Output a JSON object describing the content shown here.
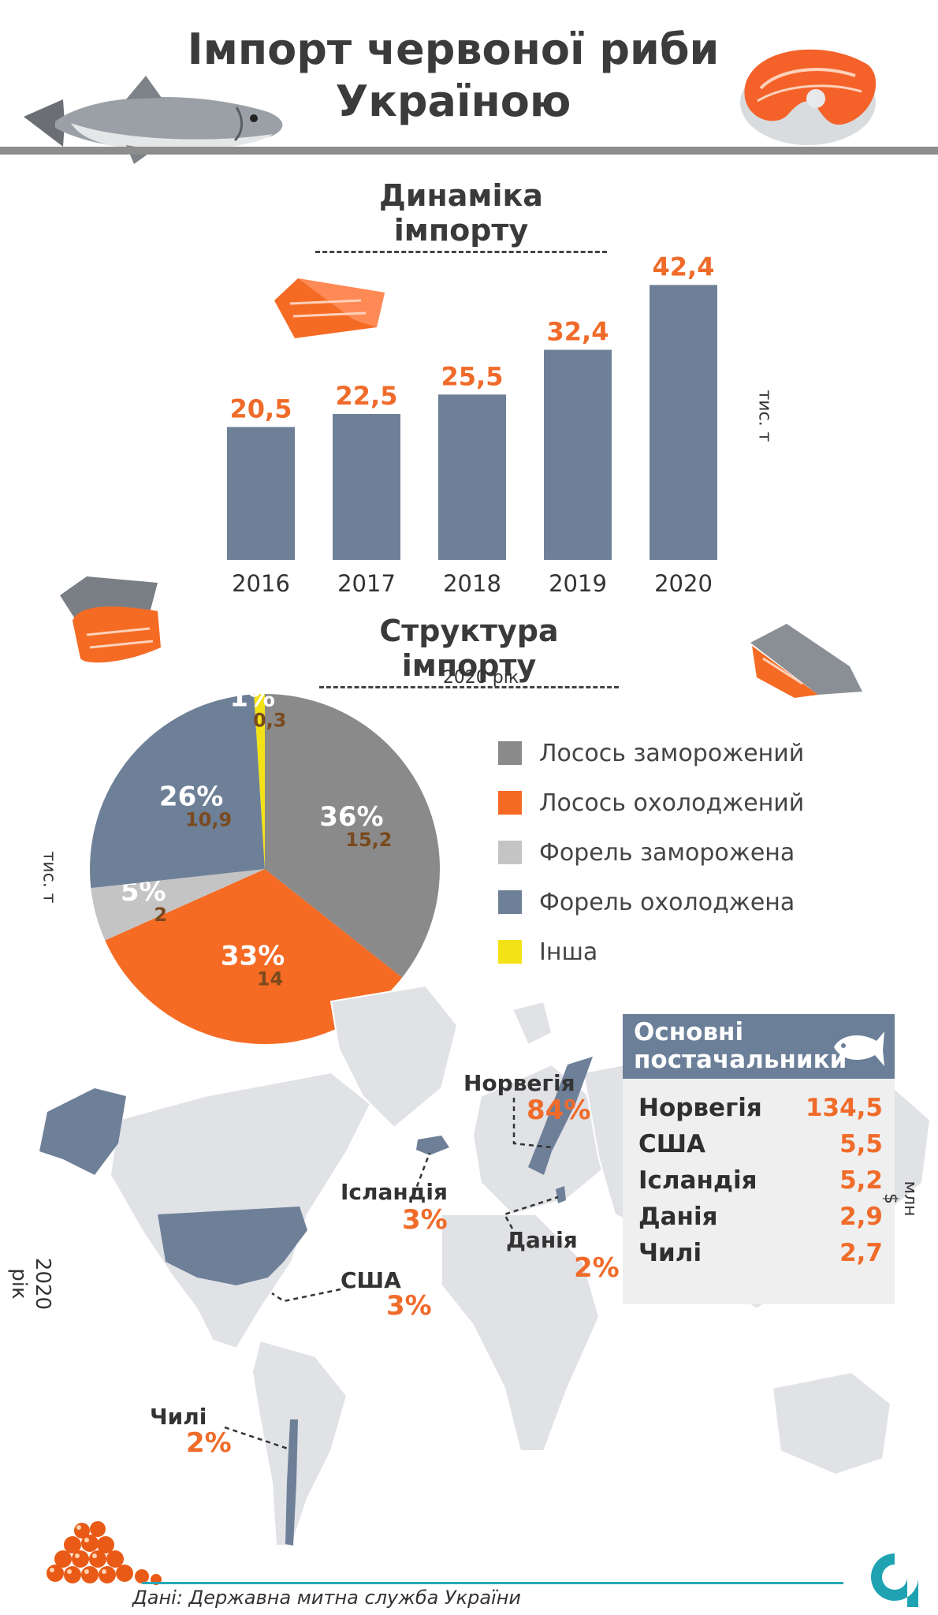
{
  "title": "Імпорт червоної риби Україною",
  "colors": {
    "bar": "#6e8098",
    "value_orange": "#f06b2a",
    "pie_salmon_frozen": "#8a8a8a",
    "pie_salmon_chilled": "#f56b24",
    "pie_trout_frozen": "#c4c4c4",
    "pie_trout_chilled": "#6e8098",
    "pie_other": "#f2e216",
    "map_highlight": "#6e8098",
    "map_land": "#e0e2e6"
  },
  "section_dynamics": {
    "title": "Динаміка імпорту",
    "unit": "тис. т"
  },
  "section_structure": {
    "title": "Структура імпорту",
    "subtitle": "2020 рік",
    "unit": "тис. т"
  },
  "chart_data": [
    {
      "type": "bar",
      "title": "Динаміка імпорту",
      "ylabel": "тис. т",
      "categories": [
        "2016",
        "2017",
        "2018",
        "2019",
        "2020"
      ],
      "values": [
        20.5,
        22.5,
        25.5,
        32.4,
        42.4
      ],
      "value_labels": [
        "20,5",
        "22,5",
        "25,5",
        "32,4",
        "42,4"
      ],
      "ylim": [
        0,
        45
      ]
    },
    {
      "type": "pie",
      "title": "Структура імпорту",
      "subtitle": "2020 рік",
      "unit": "тис. т",
      "slices": [
        {
          "name": "Лосось заморожений",
          "percent": 36,
          "percent_label": "36%",
          "value": 15.2,
          "value_label": "15,2",
          "color": "#8a8a8a"
        },
        {
          "name": "Лосось охолоджений",
          "percent": 33,
          "percent_label": "33%",
          "value": 14,
          "value_label": "14",
          "color": "#f56b24"
        },
        {
          "name": "Форель заморожена",
          "percent": 5,
          "percent_label": "5%",
          "value": 2,
          "value_label": "2",
          "color": "#c4c4c4"
        },
        {
          "name": "Форель охолоджена",
          "percent": 26,
          "percent_label": "26%",
          "value": 10.9,
          "value_label": "10,9",
          "color": "#6e8098"
        },
        {
          "name": "Інша",
          "percent": 1,
          "percent_label": "1%",
          "value": 0.3,
          "value_label": "0,3",
          "color": "#f2e216"
        }
      ]
    },
    {
      "type": "table",
      "title": "Основні постачальники",
      "unit": "млн $",
      "rows": [
        {
          "country": "Норвегія",
          "value": 134.5,
          "value_label": "134,5"
        },
        {
          "country": "США",
          "value": 5.5,
          "value_label": "5,5"
        },
        {
          "country": "Ісландія",
          "value": 5.2,
          "value_label": "5,2"
        },
        {
          "country": "Данія",
          "value": 2.9,
          "value_label": "2,9"
        },
        {
          "country": "Чилі",
          "value": 2.7,
          "value_label": "2,7"
        }
      ]
    }
  ],
  "map": {
    "year": "2020 рік",
    "labels": [
      {
        "country": "Норвегія",
        "share": "84%"
      },
      {
        "country": "Ісландія",
        "share": "3%"
      },
      {
        "country": "Данія",
        "share": "2%"
      },
      {
        "country": "США",
        "share": "3%"
      },
      {
        "country": "Чилі",
        "share": "2%"
      }
    ]
  },
  "suppliers": {
    "title_line1": "Основні",
    "title_line2": "постачальники",
    "unit": "млн $"
  },
  "source": "Дані: Державна митна служба України",
  "icons": [
    "salmon-fish-icon",
    "salmon-steak-icon",
    "salmon-fillet-icon",
    "caviar-icon",
    "fish-silhouette-icon",
    "brand-logo-icon"
  ]
}
